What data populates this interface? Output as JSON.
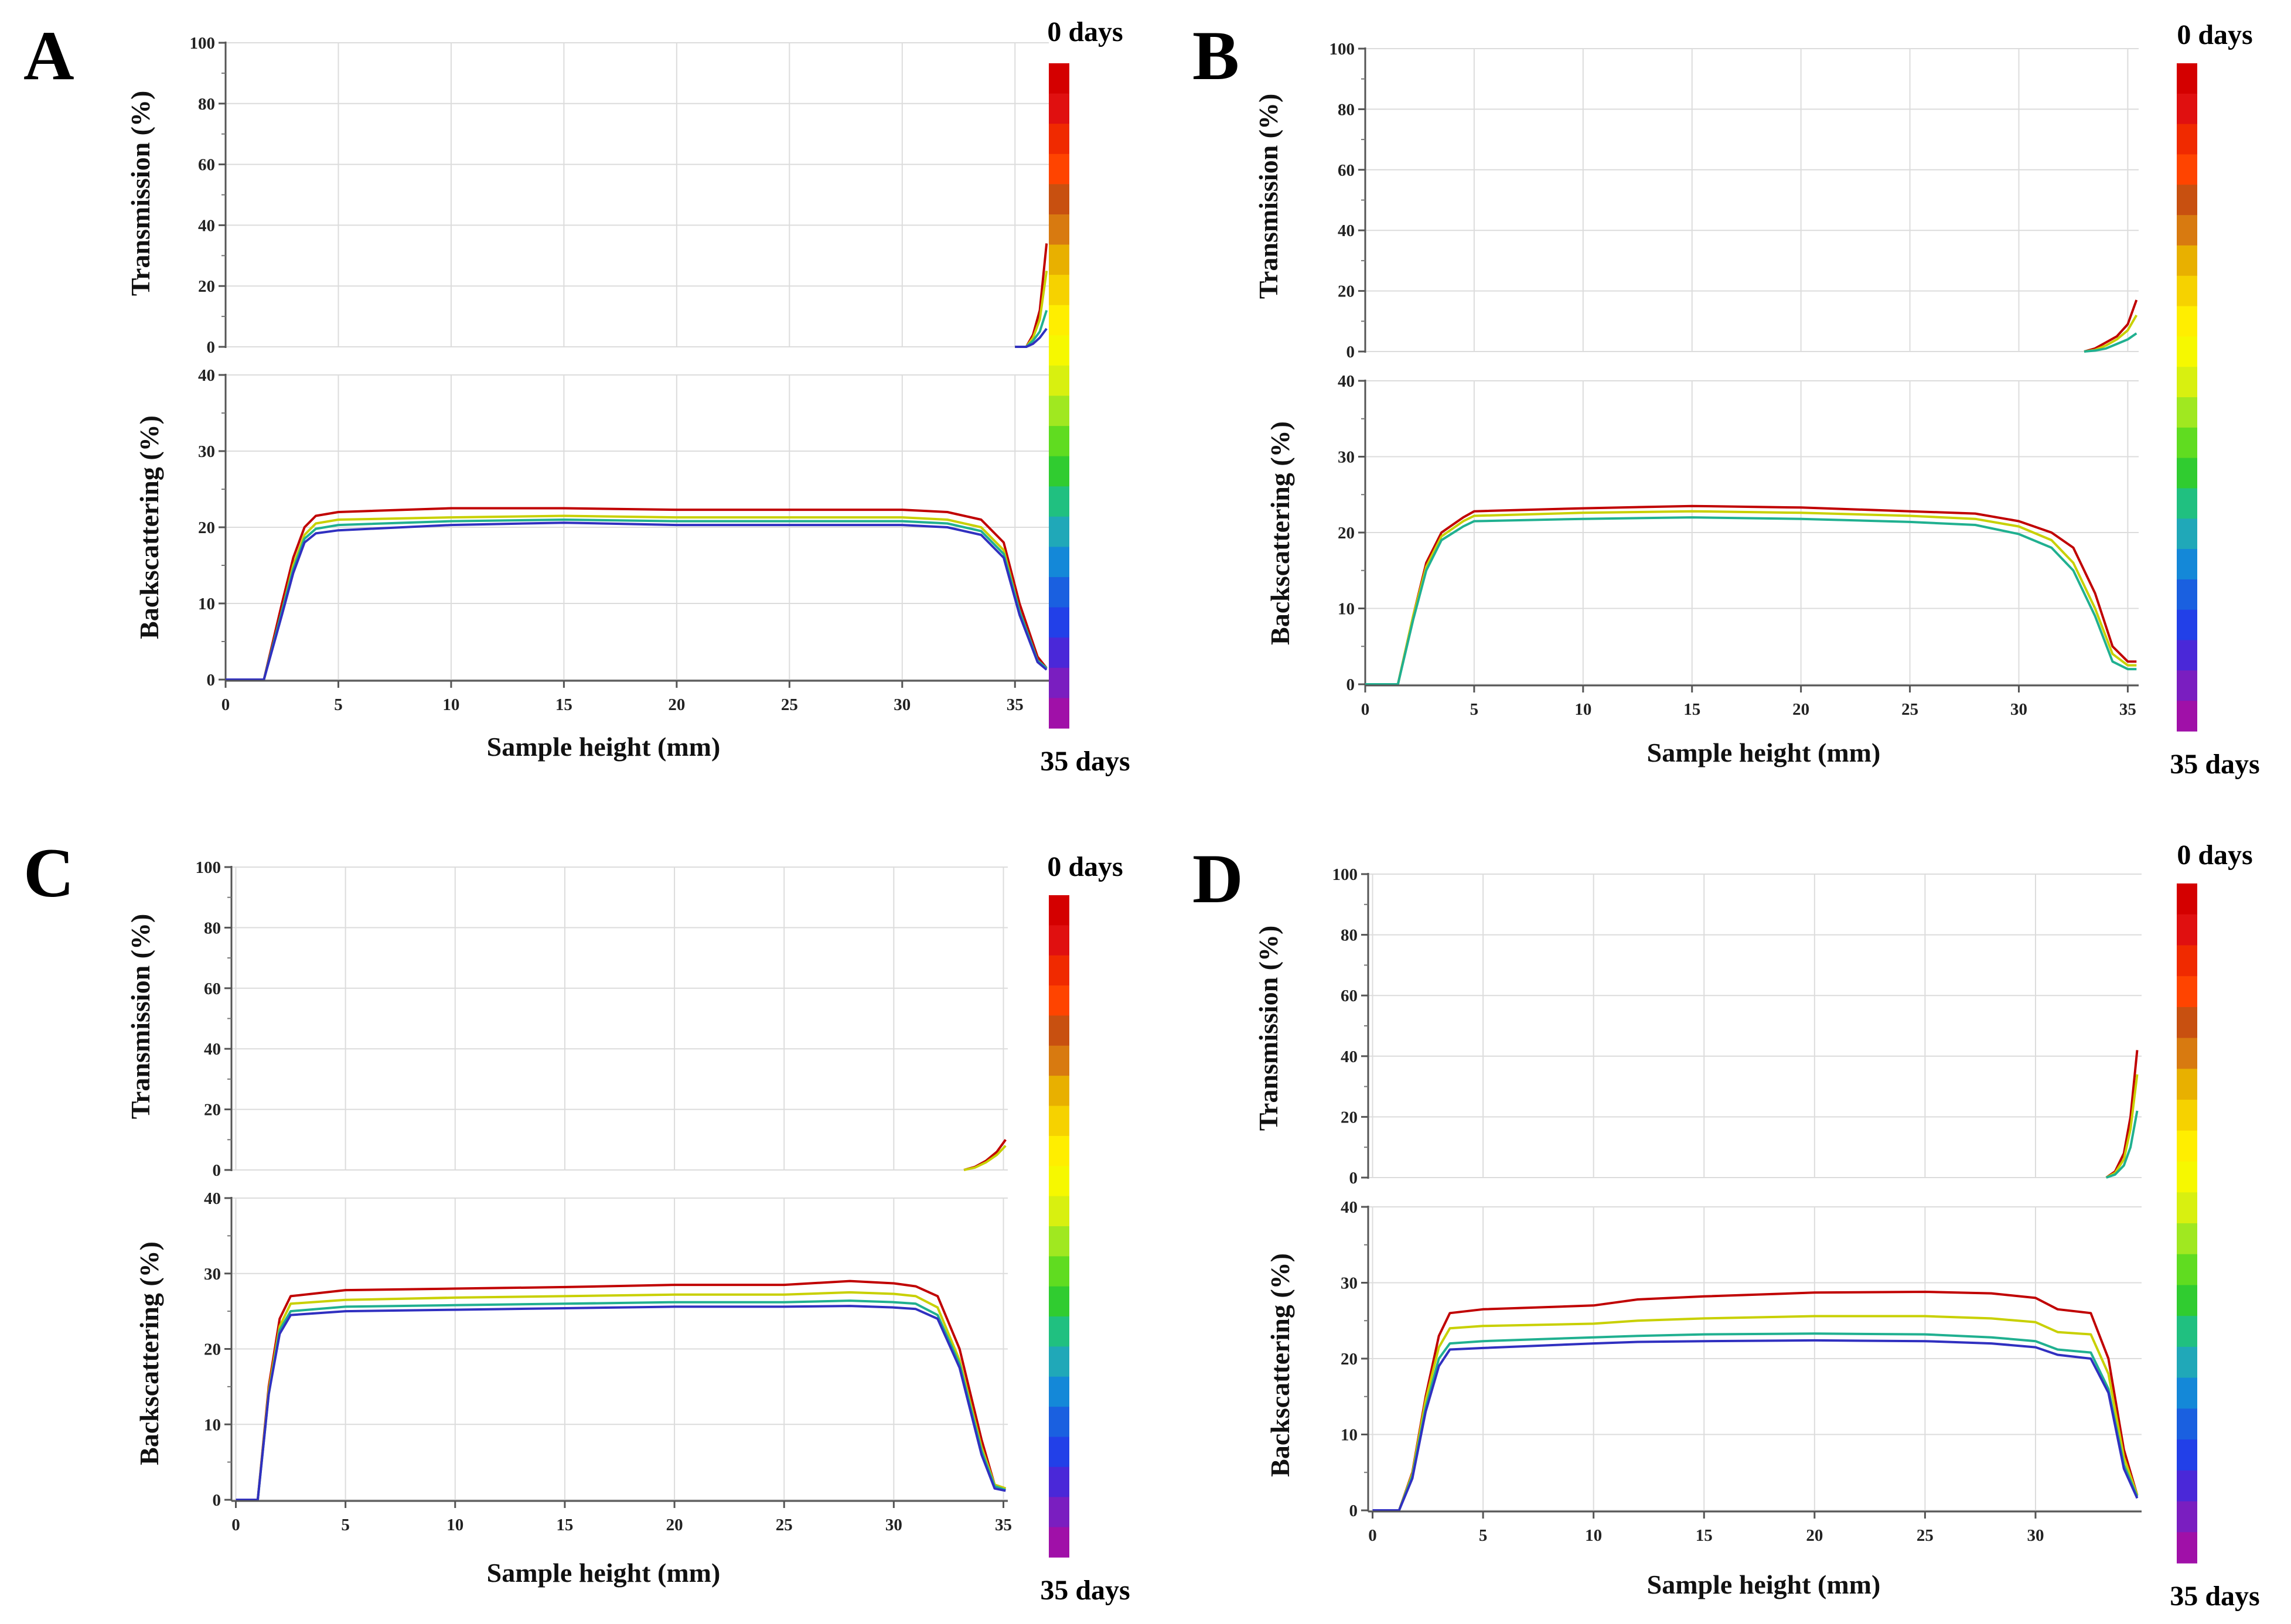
{
  "figure": {
    "colorbar_colors": [
      "#d40000",
      "#e01010",
      "#f02a00",
      "#ff4400",
      "#c85010",
      "#d87a10",
      "#e8b000",
      "#f6d200",
      "#ffee00",
      "#f6f800",
      "#d8f010",
      "#a0e820",
      "#60dc20",
      "#30cc30",
      "#20c080",
      "#20a8b8",
      "#1488d8",
      "#1a60e0",
      "#2240e8",
      "#4a28d8",
      "#7a1ec0",
      "#a010a8"
    ],
    "colorbar_top_label": "0 days",
    "colorbar_bottom_label": "35 days",
    "curve_colors": [
      "#c00000",
      "#d06000",
      "#d4a000",
      "#c8d000",
      "#90d040",
      "#40c040",
      "#20b090",
      "#1890c8",
      "#1860d0",
      "#3030c0",
      "#7020b0",
      "#8a1a9a"
    ]
  },
  "chart_data": [
    {
      "panel": "A",
      "type": "line",
      "xlabel": "Sample height (mm)",
      "xlim": [
        0,
        36.5
      ],
      "xticks": [
        0,
        5,
        10,
        15,
        20,
        25,
        30,
        35
      ],
      "transmission": {
        "ylabel": "Transmission (%)",
        "ylim": [
          0,
          100
        ],
        "yticks": [
          0,
          20,
          40,
          60,
          80,
          100
        ],
        "series": [
          {
            "x": [
              35.0,
              35.5,
              35.8,
              36.1,
              36.4
            ],
            "y": [
              0,
              0,
              4,
              12,
              34
            ]
          },
          {
            "x": [
              35.0,
              35.5,
              35.8,
              36.1,
              36.4
            ],
            "y": [
              0,
              0,
              3,
              9,
              25
            ]
          },
          {
            "x": [
              35.0,
              35.5,
              35.8,
              36.1,
              36.4
            ],
            "y": [
              0,
              0,
              2,
              5,
              12
            ]
          },
          {
            "x": [
              35.0,
              35.5,
              35.8,
              36.1,
              36.4
            ],
            "y": [
              0,
              0,
              1,
              3,
              6
            ]
          }
        ]
      },
      "backscattering": {
        "ylabel": "Backscattering (%)",
        "ylim": [
          0,
          40
        ],
        "yticks": [
          0,
          10,
          20,
          30,
          40
        ],
        "series": [
          {
            "x": [
              0,
              1.7,
              2.5,
              3.0,
              3.5,
              4.0,
              5,
              10,
              15,
              20,
              25,
              30,
              32,
              33.5,
              34.5,
              35.2,
              36.0,
              36.4
            ],
            "y": [
              0,
              0,
              10,
              16,
              20,
              21.5,
              22,
              22.5,
              22.5,
              22.3,
              22.3,
              22.3,
              22,
              21,
              18,
              10,
              3,
              1.5
            ]
          },
          {
            "x": [
              0,
              1.7,
              2.5,
              3.0,
              3.5,
              4.0,
              5,
              10,
              15,
              20,
              25,
              30,
              32,
              33.5,
              34.5,
              35.2,
              36.0,
              36.4
            ],
            "y": [
              0,
              0,
              9,
              15,
              19,
              20.5,
              21,
              21.3,
              21.5,
              21.3,
              21.3,
              21.3,
              21,
              20,
              17,
              9,
              2.5,
              1.5
            ]
          },
          {
            "x": [
              0,
              1.7,
              2.5,
              3.0,
              3.5,
              4.0,
              5,
              10,
              15,
              20,
              25,
              30,
              32,
              33.5,
              34.5,
              35.2,
              36.0,
              36.4
            ],
            "y": [
              0,
              0,
              9,
              14.5,
              18.5,
              19.8,
              20.3,
              20.8,
              21,
              20.8,
              20.8,
              20.8,
              20.5,
              19.5,
              16.5,
              9,
              2.5,
              1.5
            ]
          },
          {
            "x": [
              0,
              1.7,
              2.5,
              3.0,
              3.5,
              4.0,
              5,
              10,
              15,
              20,
              25,
              30,
              32,
              33.5,
              34.5,
              35.2,
              36.0,
              36.4
            ],
            "y": [
              0,
              0,
              8.5,
              14,
              18,
              19.2,
              19.6,
              20.3,
              20.6,
              20.3,
              20.3,
              20.3,
              20,
              19,
              16,
              8.5,
              2.3,
              1.3
            ]
          }
        ]
      }
    },
    {
      "panel": "B",
      "type": "line",
      "xlabel": "Sample height (mm)",
      "xlim": [
        0,
        35.5
      ],
      "xticks": [
        0,
        5,
        10,
        15,
        20,
        25,
        30,
        35
      ],
      "transmission": {
        "ylabel": "Transmission (%)",
        "ylim": [
          0,
          100
        ],
        "yticks": [
          0,
          20,
          40,
          60,
          80,
          100
        ],
        "series": [
          {
            "x": [
              33.0,
              33.5,
              34.0,
              34.5,
              35.0,
              35.4
            ],
            "y": [
              0,
              1,
              3,
              5,
              9,
              17
            ]
          },
          {
            "x": [
              33.0,
              33.5,
              34.0,
              34.5,
              35.0,
              35.4
            ],
            "y": [
              0,
              0.5,
              2,
              4,
              7,
              12
            ]
          },
          {
            "x": [
              33.0,
              33.5,
              34.0,
              34.5,
              35.0,
              35.4
            ],
            "y": [
              0,
              0.3,
              1,
              2.5,
              4,
              6
            ]
          }
        ]
      },
      "backscattering": {
        "ylabel": "Backscattering (%)",
        "ylim": [
          0,
          40
        ],
        "yticks": [
          0,
          10,
          20,
          30,
          40
        ],
        "series": [
          {
            "x": [
              0,
              1.5,
              2.2,
              2.8,
              3.5,
              4.5,
              5,
              10,
              15,
              20,
              25,
              28,
              30,
              31.5,
              32.5,
              33.5,
              34.3,
              35.0,
              35.4
            ],
            "y": [
              0,
              0,
              9,
              16,
              20,
              22,
              22.8,
              23.2,
              23.5,
              23.3,
              22.8,
              22.5,
              21.5,
              20,
              18,
              12,
              5,
              3,
              3
            ]
          },
          {
            "x": [
              0,
              1.5,
              2.2,
              2.8,
              3.5,
              4.5,
              5,
              10,
              15,
              20,
              25,
              28,
              30,
              31.5,
              32.5,
              33.5,
              34.3,
              35.0,
              35.4
            ],
            "y": [
              0,
              0,
              9,
              15.5,
              19.5,
              21.5,
              22.2,
              22.6,
              22.8,
              22.6,
              22.2,
              21.8,
              20.8,
              19,
              16,
              10,
              4,
              2.5,
              2.5
            ]
          },
          {
            "x": [
              0,
              1.5,
              2.2,
              2.8,
              3.5,
              4.5,
              5,
              10,
              15,
              20,
              25,
              28,
              30,
              31.5,
              32.5,
              33.5,
              34.3,
              35.0,
              35.4
            ],
            "y": [
              0,
              0,
              8.5,
              15,
              19,
              20.8,
              21.5,
              21.8,
              22,
              21.8,
              21.4,
              21,
              19.8,
              18,
              15,
              9,
              3,
              2,
              2
            ]
          }
        ]
      }
    },
    {
      "panel": "C",
      "type": "line",
      "xlabel": "Sample height (mm)",
      "xlim": [
        -0.2,
        35.2
      ],
      "xticks": [
        0,
        5,
        10,
        15,
        20,
        25,
        30,
        35
      ],
      "transmission": {
        "ylabel": "Transmission (%)",
        "ylim": [
          0,
          100
        ],
        "yticks": [
          0,
          20,
          40,
          60,
          80,
          100
        ],
        "series": [
          {
            "x": [
              33.2,
              33.7,
              34.2,
              34.7,
              35.1
            ],
            "y": [
              0,
              1,
              3,
              6,
              10
            ]
          },
          {
            "x": [
              33.2,
              33.7,
              34.2,
              34.7,
              35.1
            ],
            "y": [
              0,
              0.8,
              2.5,
              5,
              8
            ]
          }
        ]
      },
      "backscattering": {
        "ylabel": "Backscattering (%)",
        "ylim": [
          0,
          40
        ],
        "yticks": [
          0,
          10,
          20,
          30,
          40
        ],
        "series": [
          {
            "x": [
              0,
              1.0,
              1.5,
              2.0,
              2.5,
              5,
              10,
              15,
              20,
              25,
              28,
              30,
              31,
              32,
              33,
              34,
              34.6,
              35.1
            ],
            "y": [
              0,
              0,
              15,
              24,
              27,
              27.8,
              28,
              28.2,
              28.5,
              28.5,
              29,
              28.7,
              28.3,
              27,
              20,
              8,
              2,
              1.5
            ]
          },
          {
            "x": [
              0,
              1.0,
              1.5,
              2.0,
              2.5,
              5,
              10,
              15,
              20,
              25,
              28,
              30,
              31,
              32,
              33,
              34,
              34.6,
              35.1
            ],
            "y": [
              0,
              0,
              14.5,
              23,
              26,
              26.5,
              26.8,
              27,
              27.2,
              27.2,
              27.5,
              27.3,
              27,
              25.5,
              18.5,
              7,
              2,
              1.5
            ]
          },
          {
            "x": [
              0,
              1.0,
              1.5,
              2.0,
              2.5,
              5,
              10,
              15,
              20,
              25,
              28,
              30,
              31,
              32,
              33,
              34,
              34.6,
              35.1
            ],
            "y": [
              0,
              0,
              14,
              22.5,
              25,
              25.6,
              25.8,
              26,
              26.2,
              26.2,
              26.4,
              26.2,
              26,
              24.5,
              18,
              6.5,
              1.8,
              1.3
            ]
          },
          {
            "x": [
              0,
              1.0,
              1.5,
              2.0,
              2.5,
              5,
              10,
              15,
              20,
              25,
              28,
              30,
              31,
              32,
              33,
              34,
              34.6,
              35.1
            ],
            "y": [
              0,
              0,
              14,
              22,
              24.5,
              25,
              25.2,
              25.4,
              25.6,
              25.6,
              25.7,
              25.5,
              25.3,
              24,
              17.5,
              6,
              1.5,
              1.2
            ]
          }
        ]
      }
    },
    {
      "panel": "D",
      "type": "line",
      "xlabel": "Sample height (mm)",
      "xlim": [
        -0.2,
        34.8
      ],
      "xticks": [
        0,
        5,
        10,
        15,
        20,
        25,
        30,
        35
      ],
      "transmission": {
        "ylabel": "Transmission (%)",
        "ylim": [
          0,
          100
        ],
        "yticks": [
          0,
          20,
          40,
          60,
          80,
          100
        ],
        "series": [
          {
            "x": [
              33.2,
              33.6,
              34.0,
              34.3,
              34.6
            ],
            "y": [
              0,
              2,
              8,
              20,
              42
            ]
          },
          {
            "x": [
              33.2,
              33.6,
              34.0,
              34.3,
              34.6
            ],
            "y": [
              0,
              1.5,
              6,
              16,
              34
            ]
          },
          {
            "x": [
              33.2,
              33.6,
              34.0,
              34.3,
              34.6
            ],
            "y": [
              0,
              1,
              4,
              10,
              22
            ]
          }
        ]
      },
      "backscattering": {
        "ylabel": "Backscattering (%)",
        "ylim": [
          0,
          40
        ],
        "yticks": [
          0,
          10,
          20,
          30,
          40
        ],
        "series": [
          {
            "x": [
              0,
              1.2,
              1.8,
              2.4,
              3.0,
              3.5,
              5,
              10,
              12,
              15,
              20,
              25,
              28,
              30,
              31,
              32.5,
              33.3,
              34.0,
              34.6
            ],
            "y": [
              0,
              0,
              5,
              15,
              23,
              26,
              26.5,
              27,
              27.8,
              28.2,
              28.7,
              28.8,
              28.6,
              28,
              26.5,
              26,
              20,
              8,
              2
            ]
          },
          {
            "x": [
              0,
              1.2,
              1.8,
              2.4,
              3.0,
              3.5,
              5,
              10,
              12,
              15,
              20,
              25,
              28,
              30,
              31,
              32.5,
              33.3,
              34.0,
              34.6
            ],
            "y": [
              0,
              0,
              4.8,
              14.5,
              21.5,
              24,
              24.3,
              24.6,
              25,
              25.3,
              25.6,
              25.6,
              25.3,
              24.8,
              23.5,
              23.2,
              18,
              7,
              2
            ]
          },
          {
            "x": [
              0,
              1.2,
              1.8,
              2.4,
              3.0,
              3.5,
              5,
              10,
              12,
              15,
              20,
              25,
              28,
              30,
              31,
              32.5,
              33.3,
              34.0,
              34.6
            ],
            "y": [
              0,
              0,
              4.5,
              13.5,
              20,
              22,
              22.3,
              22.8,
              23,
              23.2,
              23.3,
              23.2,
              22.8,
              22.3,
              21.2,
              20.8,
              16,
              6,
              1.8
            ]
          },
          {
            "x": [
              0,
              1.2,
              1.8,
              2.4,
              3.0,
              3.5,
              5,
              10,
              12,
              15,
              20,
              25,
              28,
              30,
              31,
              32.5,
              33.3,
              34.0,
              34.6
            ],
            "y": [
              0,
              0,
              4.2,
              13,
              19,
              21.2,
              21.4,
              22,
              22.2,
              22.3,
              22.4,
              22.3,
              22,
              21.5,
              20.5,
              20,
              15.5,
              5.5,
              1.6
            ]
          }
        ]
      }
    }
  ]
}
